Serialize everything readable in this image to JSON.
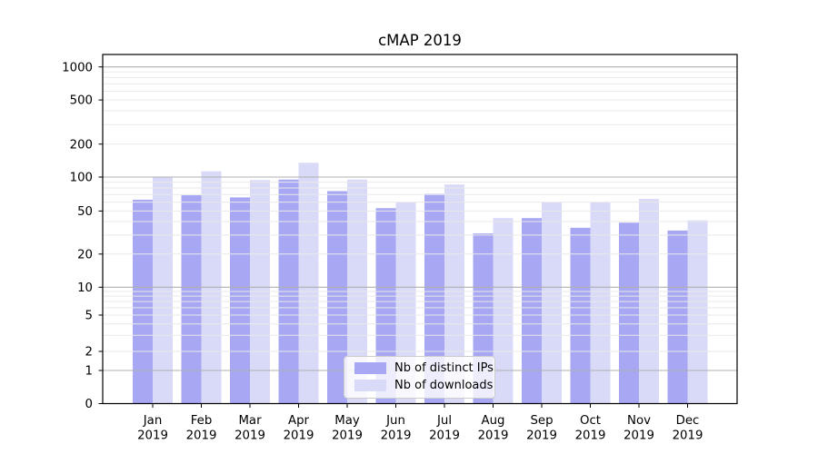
{
  "chart_data": {
    "type": "bar",
    "title": "cMAP 2019",
    "year_label": "2019",
    "months": [
      "Jan",
      "Feb",
      "Mar",
      "Apr",
      "May",
      "Jun",
      "Jul",
      "Aug",
      "Sep",
      "Oct",
      "Nov",
      "Dec"
    ],
    "series": [
      {
        "name": "Nb of distinct IPs",
        "color": "#a7a7f3",
        "values": [
          63,
          69,
          66,
          95,
          75,
          53,
          71,
          31,
          43,
          35,
          39,
          33
        ]
      },
      {
        "name": "Nb of downloads",
        "color": "#d9d9f8",
        "values": [
          101,
          113,
          94,
          135,
          95,
          60,
          86,
          43,
          60,
          60,
          64,
          41
        ]
      }
    ],
    "yticks": [
      1000,
      500,
      200,
      100,
      50,
      20,
      10,
      5,
      2,
      1,
      0
    ],
    "yscale": "symlog",
    "ylim": [
      0,
      1000
    ],
    "grid": true,
    "legend_position": "lower center",
    "colors": {
      "background": "#ffffff",
      "axis": "#000000",
      "grid_major": "#b0b0b0",
      "grid_minor": "#e9e9e9",
      "text": "#000000"
    }
  }
}
